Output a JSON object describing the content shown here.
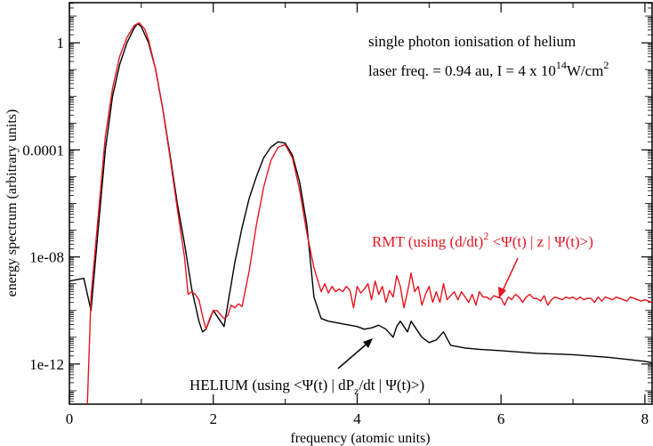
{
  "chart_data": {
    "type": "line",
    "xlabel": "frequency (atomic units)",
    "ylabel": "energy spectrum (arbitrary units)",
    "xlim": [
      0,
      8.1
    ],
    "ylim_log10": [
      -13.5,
      1.5
    ],
    "y_scale": "log",
    "x_ticks": [
      0,
      2,
      4,
      6,
      8
    ],
    "x_tick_labels": [
      "0",
      "2",
      "4",
      "6",
      "8"
    ],
    "y_ticks_log10": [
      0,
      -4,
      -8,
      -12
    ],
    "y_tick_labels": [
      "1",
      "0.0001",
      "1e-08",
      "1e-12"
    ],
    "grid": false,
    "annotations": {
      "line1": "single photon ionisation of helium",
      "line2_pre": "laser freq. = 0.94 au, I = 4 x 10",
      "line2_exp": "14",
      "line2_post": "W/cm",
      "line2_exp2": "2"
    },
    "series": [
      {
        "name": "HELIUM",
        "label_pre": "HELIUM (using  <Ψ(t) | dP",
        "label_sub": "z",
        "label_post": "/dt | Ψ(t)>)",
        "color": "#000000",
        "x": [
          0,
          0.2,
          0.3,
          0.4,
          0.5,
          0.6,
          0.7,
          0.8,
          0.9,
          0.95,
          1.0,
          1.1,
          1.2,
          1.3,
          1.4,
          1.5,
          1.6,
          1.7,
          1.8,
          1.85,
          1.9,
          2.0,
          2.1,
          2.15,
          2.2,
          2.3,
          2.4,
          2.5,
          2.6,
          2.7,
          2.8,
          2.9,
          3.0,
          3.1,
          3.2,
          3.3,
          3.4,
          3.5,
          3.6,
          3.7,
          3.8,
          3.9,
          4.0,
          4.1,
          4.2,
          4.3,
          4.4,
          4.5,
          4.55,
          4.6,
          4.7,
          4.75,
          4.8,
          4.9,
          5.0,
          5.1,
          5.2,
          5.3,
          5.5,
          5.7,
          6.0,
          6.5,
          7.0,
          7.5,
          8.0,
          8.1
        ],
        "y_log10": [
          -8.9,
          -8.8,
          -10.0,
          -7.0,
          -4.0,
          -2.0,
          -0.8,
          0.0,
          0.55,
          0.72,
          0.6,
          0.0,
          -1.0,
          -2.5,
          -4.2,
          -6.0,
          -7.5,
          -9.2,
          -10.4,
          -10.8,
          -10.7,
          -10.0,
          -10.4,
          -10.6,
          -9.8,
          -8.2,
          -6.9,
          -5.8,
          -5.0,
          -4.3,
          -3.9,
          -3.7,
          -3.75,
          -4.2,
          -5.2,
          -6.8,
          -9.5,
          -10.3,
          -10.4,
          -10.45,
          -10.5,
          -10.55,
          -10.6,
          -10.7,
          -10.65,
          -10.55,
          -10.7,
          -11.0,
          -10.6,
          -10.4,
          -10.8,
          -10.4,
          -10.6,
          -11.0,
          -11.2,
          -11.1,
          -10.8,
          -11.3,
          -11.4,
          -11.45,
          -11.5,
          -11.6,
          -11.65,
          -11.75,
          -11.9,
          -11.95
        ]
      },
      {
        "name": "RMT",
        "label_pre": "RMT (using  (d/dt)",
        "label_sup": "2",
        "label_post": " <Ψ(t) | z | Ψ(t)>)",
        "color": "#e8141d",
        "x": [
          0.25,
          0.3,
          0.4,
          0.5,
          0.6,
          0.7,
          0.8,
          0.9,
          0.97,
          1.05,
          1.1,
          1.2,
          1.3,
          1.4,
          1.5,
          1.6,
          1.65,
          1.7,
          1.75,
          1.8,
          1.85,
          1.9,
          1.95,
          2.0,
          2.05,
          2.1,
          2.15,
          2.2,
          2.25,
          2.3,
          2.35,
          2.4,
          2.5,
          2.6,
          2.7,
          2.8,
          2.9,
          3.0,
          3.1,
          3.2,
          3.3,
          3.4,
          3.5,
          3.55,
          3.6,
          3.65,
          3.7,
          3.75,
          3.8,
          3.85,
          3.9,
          3.95,
          4.0,
          4.05,
          4.1,
          4.15,
          4.2,
          4.25,
          4.3,
          4.35,
          4.4,
          4.45,
          4.5,
          4.55,
          4.6,
          4.65,
          4.7,
          4.75,
          4.8,
          4.85,
          4.9,
          4.95,
          5.0,
          5.05,
          5.1,
          5.15,
          5.2,
          5.25,
          5.3,
          5.35,
          5.4,
          5.45,
          5.5,
          5.55,
          5.6,
          5.65,
          5.7,
          5.75,
          5.8,
          5.85,
          5.9,
          5.95,
          6.0,
          6.05,
          6.1,
          6.15,
          6.2,
          6.25,
          6.3,
          6.35,
          6.4,
          6.45,
          6.5,
          6.55,
          6.6,
          6.65,
          6.7,
          6.75,
          6.8,
          6.85,
          6.9,
          6.95,
          7.0,
          7.05,
          7.1,
          7.15,
          7.2,
          7.25,
          7.3,
          7.35,
          7.4,
          7.45,
          7.5,
          7.55,
          7.6,
          7.65,
          7.7,
          7.75,
          7.8,
          7.85,
          7.9,
          7.95,
          8.0,
          8.1
        ],
        "y_log10": [
          -13.5,
          -9.5,
          -6.5,
          -3.5,
          -1.7,
          -0.5,
          0.2,
          0.65,
          0.75,
          0.5,
          0.1,
          -1.0,
          -2.5,
          -4.3,
          -6.2,
          -8.0,
          -9.4,
          -9.3,
          -9.4,
          -9.6,
          -10.2,
          -10.7,
          -10.3,
          -10.0,
          -10.0,
          -10.15,
          -10.3,
          -10.2,
          -9.8,
          -9.9,
          -9.75,
          -9.85,
          -8.5,
          -6.8,
          -5.4,
          -4.4,
          -3.9,
          -3.8,
          -4.3,
          -5.5,
          -7.1,
          -8.4,
          -9.3,
          -9.0,
          -9.35,
          -9.1,
          -9.3,
          -9.2,
          -9.3,
          -9.1,
          -9.25,
          -9.9,
          -9.1,
          -9.35,
          -9.2,
          -9.0,
          -9.6,
          -8.9,
          -9.4,
          -9.1,
          -9.7,
          -9.25,
          -9.5,
          -8.7,
          -9.1,
          -9.9,
          -9.3,
          -8.6,
          -9.3,
          -9.1,
          -9.8,
          -9.4,
          -9.1,
          -9.7,
          -9.3,
          -9.7,
          -9.0,
          -9.6,
          -9.45,
          -9.3,
          -9.6,
          -9.3,
          -9.5,
          -9.7,
          -9.4,
          -9.8,
          -9.3,
          -9.5,
          -9.5,
          -9.6,
          -9.45,
          -9.5,
          -9.55,
          -9.8,
          -9.5,
          -9.6,
          -9.4,
          -9.5,
          -9.7,
          -9.5,
          -9.4,
          -9.55,
          -9.55,
          -9.65,
          -9.45,
          -9.8,
          -9.6,
          -9.5,
          -9.55,
          -9.6,
          -9.5,
          -9.55,
          -9.5,
          -9.6,
          -9.5,
          -9.6,
          -9.55,
          -9.55,
          -9.7,
          -9.5,
          -9.65,
          -9.5,
          -9.55,
          -9.6,
          -9.5,
          -9.55,
          -9.6,
          -9.65,
          -9.5,
          -9.55,
          -9.6,
          -9.65,
          -9.6,
          -9.7
        ]
      }
    ]
  }
}
